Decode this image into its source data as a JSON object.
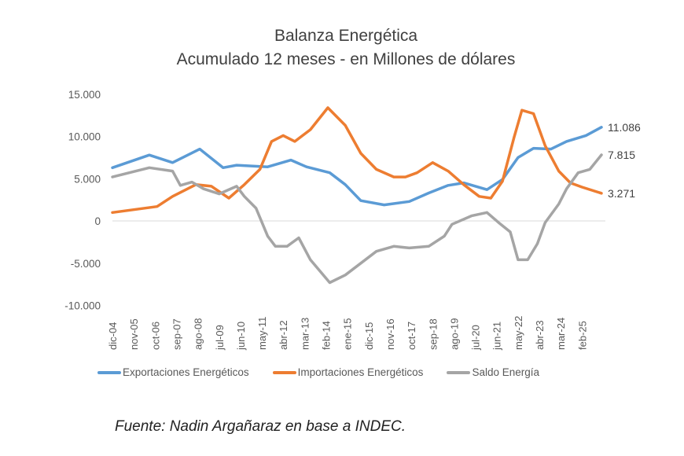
{
  "chart_data": {
    "type": "line",
    "title": "Balanza Energética",
    "subtitle": "Acumulado 12 meses - en Millones de dólares",
    "xlabel": "",
    "ylabel": "",
    "ylim": [
      -10000,
      15000
    ],
    "yticks": [
      "15.000",
      "10.000",
      "5.000",
      "0",
      "-5.000",
      "-10.000"
    ],
    "ytick_values": [
      15000,
      10000,
      5000,
      0,
      -5000,
      -10000
    ],
    "xlim": [
      "2004-12",
      "2025-12"
    ],
    "xticks": [
      "dic-04",
      "nov-05",
      "oct-06",
      "sep-07",
      "ago-08",
      "jul-09",
      "jun-10",
      "may-11",
      "abr-12",
      "mar-13",
      "feb-14",
      "ene-15",
      "dic-15",
      "nov-16",
      "oct-17",
      "sep-18",
      "ago-19",
      "jul-20",
      "jun-21",
      "may-22",
      "abr-23",
      "mar-24",
      "feb-25"
    ],
    "grid": "zero line only",
    "legend": "bottom",
    "series": [
      {
        "name": "Exportaciones Energéticos",
        "color": "#5b9bd5",
        "end_label": "11.086",
        "points": [
          [
            "2004-12",
            6300
          ],
          [
            "2006-07",
            7800
          ],
          [
            "2007-07",
            6900
          ],
          [
            "2008-09",
            8500
          ],
          [
            "2009-09",
            6300
          ],
          [
            "2010-04",
            6600
          ],
          [
            "2011-08",
            6400
          ],
          [
            "2012-08",
            7200
          ],
          [
            "2013-04",
            6400
          ],
          [
            "2014-04",
            5700
          ],
          [
            "2014-12",
            4300
          ],
          [
            "2015-08",
            2400
          ],
          [
            "2016-08",
            1900
          ],
          [
            "2017-09",
            2300
          ],
          [
            "2018-07",
            3300
          ],
          [
            "2019-05",
            4200
          ],
          [
            "2020-01",
            4500
          ],
          [
            "2021-01",
            3700
          ],
          [
            "2021-09",
            4900
          ],
          [
            "2022-05",
            7500
          ],
          [
            "2023-01",
            8600
          ],
          [
            "2023-10",
            8500
          ],
          [
            "2024-06",
            9400
          ],
          [
            "2025-04",
            10100
          ],
          [
            "2025-12",
            11086
          ]
        ]
      },
      {
        "name": "Importaciones Energéticos",
        "color": "#ed7d31",
        "end_label": "3.271",
        "points": [
          [
            "2004-12",
            1000
          ],
          [
            "2006-11",
            1700
          ],
          [
            "2007-07",
            2900
          ],
          [
            "2008-07",
            4300
          ],
          [
            "2009-03",
            4100
          ],
          [
            "2009-12",
            2700
          ],
          [
            "2010-08",
            4300
          ],
          [
            "2011-04",
            6100
          ],
          [
            "2011-10",
            9400
          ],
          [
            "2012-04",
            10100
          ],
          [
            "2012-10",
            9400
          ],
          [
            "2013-06",
            10800
          ],
          [
            "2014-03",
            13400
          ],
          [
            "2014-12",
            11300
          ],
          [
            "2015-08",
            8000
          ],
          [
            "2016-04",
            6100
          ],
          [
            "2017-01",
            5200
          ],
          [
            "2017-07",
            5200
          ],
          [
            "2018-01",
            5700
          ],
          [
            "2018-09",
            6900
          ],
          [
            "2019-05",
            5900
          ],
          [
            "2020-01",
            4300
          ],
          [
            "2020-09",
            2900
          ],
          [
            "2021-03",
            2700
          ],
          [
            "2021-09",
            4700
          ],
          [
            "2022-03",
            9900
          ],
          [
            "2022-07",
            13100
          ],
          [
            "2023-01",
            12700
          ],
          [
            "2023-07",
            8900
          ],
          [
            "2024-02",
            5900
          ],
          [
            "2024-08",
            4500
          ],
          [
            "2025-02",
            4000
          ],
          [
            "2025-12",
            3271
          ]
        ]
      },
      {
        "name": "Saldo Energía",
        "color": "#a5a5a5",
        "end_label": "7.815",
        "points": [
          [
            "2004-12",
            5200
          ],
          [
            "2006-07",
            6300
          ],
          [
            "2007-07",
            5900
          ],
          [
            "2007-11",
            4200
          ],
          [
            "2008-05",
            4600
          ],
          [
            "2008-11",
            3800
          ],
          [
            "2009-07",
            3200
          ],
          [
            "2010-04",
            4100
          ],
          [
            "2010-08",
            2900
          ],
          [
            "2011-02",
            1500
          ],
          [
            "2011-08",
            -1800
          ],
          [
            "2011-12",
            -3000
          ],
          [
            "2012-06",
            -3000
          ],
          [
            "2012-12",
            -2000
          ],
          [
            "2013-06",
            -4600
          ],
          [
            "2014-04",
            -7300
          ],
          [
            "2014-12",
            -6400
          ],
          [
            "2015-08",
            -5000
          ],
          [
            "2016-04",
            -3600
          ],
          [
            "2017-01",
            -3000
          ],
          [
            "2017-09",
            -3200
          ],
          [
            "2018-07",
            -3000
          ],
          [
            "2019-03",
            -1800
          ],
          [
            "2019-07",
            -400
          ],
          [
            "2020-05",
            600
          ],
          [
            "2021-01",
            1000
          ],
          [
            "2021-07",
            -200
          ],
          [
            "2022-01",
            -1300
          ],
          [
            "2022-05",
            -4600
          ],
          [
            "2022-10",
            -4600
          ],
          [
            "2023-03",
            -2700
          ],
          [
            "2023-07",
            -200
          ],
          [
            "2024-02",
            2000
          ],
          [
            "2024-06",
            3800
          ],
          [
            "2024-12",
            5700
          ],
          [
            "2025-06",
            6100
          ],
          [
            "2025-12",
            7815
          ]
        ]
      }
    ],
    "source": "Fuente: Nadin Argañaraz en base a INDEC."
  }
}
